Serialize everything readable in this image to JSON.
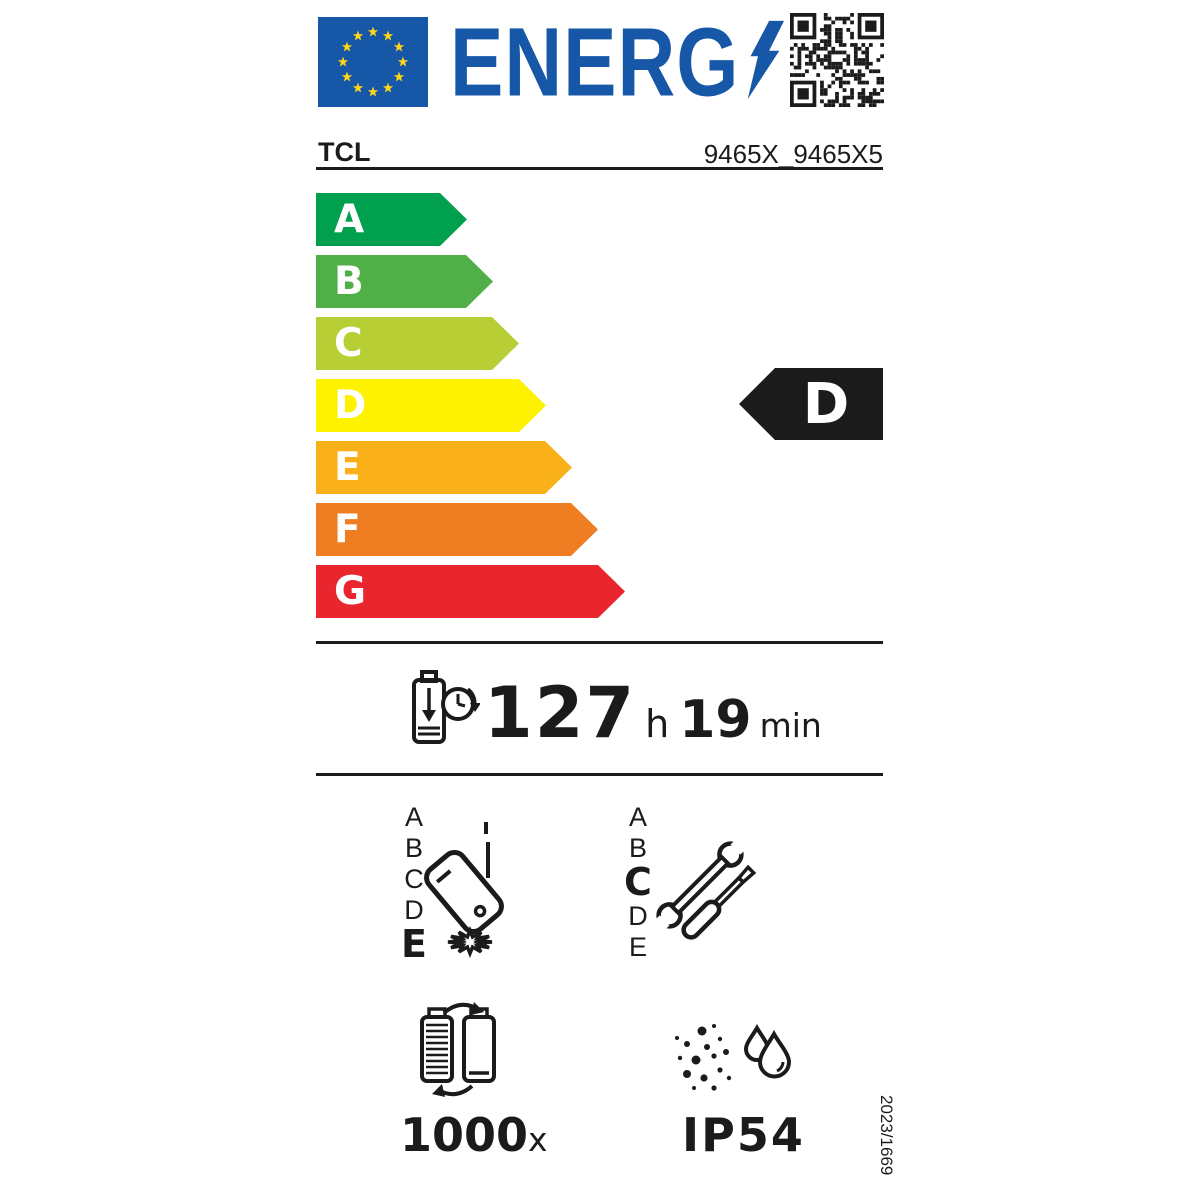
{
  "header": {
    "logo_text": "ENERG",
    "eu_flag_icon": "eu-flag",
    "lightning_icon": "lightning-bolt",
    "qr_icon": "qr-code"
  },
  "product": {
    "brand": "TCL",
    "model": "9465X_9465X5"
  },
  "efficiency_scale": {
    "rated_class": "D",
    "classes": [
      {
        "label": "A",
        "color": "#00A04E"
      },
      {
        "label": "B",
        "color": "#50AF47"
      },
      {
        "label": "C",
        "color": "#B8CE35"
      },
      {
        "label": "D",
        "color": "#FEF200"
      },
      {
        "label": "E",
        "color": "#FAB018"
      },
      {
        "label": "F",
        "color": "#EF7D22"
      },
      {
        "label": "G",
        "color": "#E9252D"
      }
    ]
  },
  "battery_endurance": {
    "icon": "battery-discharge-clock-icon",
    "hours": "127",
    "hours_unit": "h",
    "minutes": "19",
    "minutes_unit": "min"
  },
  "drop_reliability": {
    "icon": "falling-phone-icon",
    "classes": [
      "A",
      "B",
      "C",
      "D",
      "E"
    ],
    "rated": "E"
  },
  "repairability": {
    "icon": "repair-tools-icon",
    "classes": [
      "A",
      "B",
      "C",
      "D",
      "E"
    ],
    "rated": "C"
  },
  "battery_cycles": {
    "icon": "battery-cycle-icon",
    "value": "1000",
    "unit": "x"
  },
  "ingress_protection": {
    "icon": "dust-water-icon",
    "rating": "IP54"
  },
  "regulation": "2023/1669",
  "colors": {
    "blue": "#1658A7",
    "star_yellow": "#FFD617",
    "black": "#1B1B1B"
  }
}
